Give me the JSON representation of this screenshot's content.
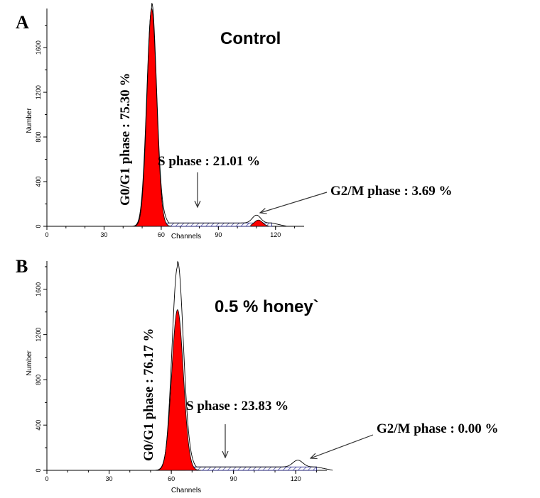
{
  "chart_data": [
    {
      "type": "area",
      "panel": "A",
      "title": "Control",
      "xlabel": "Channels",
      "ylabel": "Number",
      "xlim": [
        0,
        135
      ],
      "ylim": [
        0,
        1950
      ],
      "x_ticks": [
        "0",
        "30",
        "60",
        "90",
        "120"
      ],
      "y_ticks": [
        "0",
        "400",
        "800",
        "1200",
        "1600"
      ],
      "g1_peak": {
        "center": 55,
        "height": 1950
      },
      "s_level": 30,
      "g2_peak": {
        "center": 110,
        "height": 70
      },
      "annotations": {
        "g1": "G0/G1 phase : 75.30 %",
        "s": "S phase :  21.01 %",
        "g2m": "G2/M phase : 3.69 %"
      },
      "series": [
        {
          "name": "G0/G1 phase",
          "percent": 75.3
        },
        {
          "name": "S phase",
          "percent": 21.01
        },
        {
          "name": "G2/M phase",
          "percent": 3.69
        }
      ]
    },
    {
      "type": "area",
      "panel": "B",
      "title": "0.5 % honey`",
      "xlabel": "Channels",
      "ylabel": "Number",
      "xlim": [
        0,
        135
      ],
      "ylim": [
        0,
        1850
      ],
      "x_ticks": [
        "0",
        "30",
        "60",
        "90",
        "120"
      ],
      "y_ticks": [
        "0",
        "400",
        "800",
        "1200",
        "1600"
      ],
      "g1_peak": {
        "center": 63,
        "height": 1800,
        "fill_height": 1420
      },
      "s_level": 30,
      "g2_peak": {
        "center": 121,
        "height": 60
      },
      "annotations": {
        "g1": "G0/G1 phase : 76.17 %",
        "s": "S phase : 23.83 %",
        "g2m": "G2/M phase : 0.00 %"
      },
      "series": [
        {
          "name": "G0/G1 phase",
          "percent": 76.17
        },
        {
          "name": "S phase",
          "percent": 23.83
        },
        {
          "name": "G2/M phase",
          "percent": 0.0
        }
      ]
    }
  ]
}
